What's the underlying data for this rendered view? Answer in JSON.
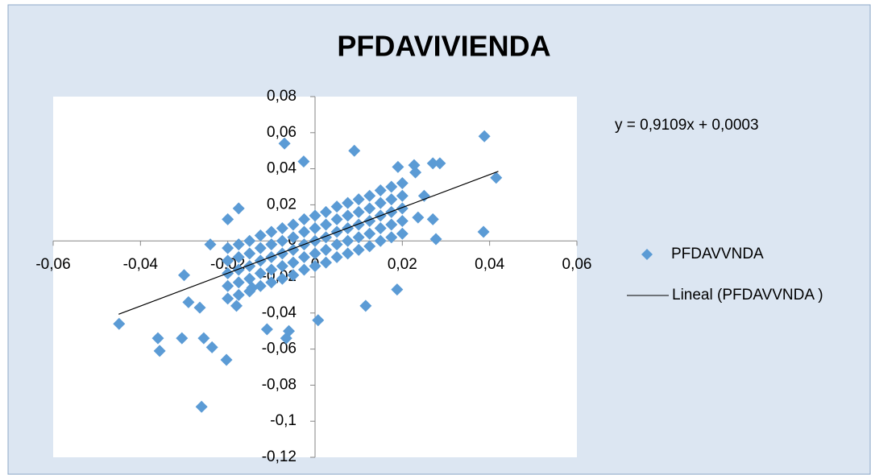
{
  "chart_data": {
    "type": "scatter",
    "title": "PFDAVIVIENDA",
    "series": [
      {
        "name": "PFDAVVNDA",
        "color": "#5b9bd5",
        "x": [
          -0.0449,
          -0.036,
          -0.0356,
          -0.0305,
          -0.03,
          -0.029,
          -0.0264,
          -0.026,
          -0.0255,
          -0.0236,
          -0.0203,
          -0.024,
          -0.018,
          -0.007,
          -0.0026,
          0.009,
          0.0007,
          0.0116,
          0.0188,
          -0.011,
          -0.0066,
          -0.006,
          0.0388,
          0.0415,
          0.0386,
          0.027,
          0.0286,
          0.0227,
          0.023,
          0.027,
          0.0277,
          0.025,
          0.0236,
          0.019,
          -0.0175,
          -0.02,
          -0.0144,
          -0.02,
          -0.02,
          -0.02,
          -0.02,
          -0.02,
          -0.0175,
          -0.0175,
          -0.0175,
          -0.0175,
          -0.0175,
          -0.015,
          -0.015,
          -0.015,
          -0.015,
          -0.015,
          -0.0125,
          -0.0125,
          -0.0125,
          -0.0125,
          -0.0125,
          -0.01,
          -0.01,
          -0.01,
          -0.01,
          -0.01,
          -0.0075,
          -0.0075,
          -0.0075,
          -0.0075,
          -0.0075,
          -0.005,
          -0.005,
          -0.005,
          -0.005,
          -0.005,
          -0.0025,
          -0.0025,
          -0.0025,
          -0.0025,
          -0.0025,
          0,
          0,
          0,
          0,
          0,
          0.0025,
          0.0025,
          0.0025,
          0.0025,
          0.0025,
          0.005,
          0.005,
          0.005,
          0.005,
          0.005,
          0.0075,
          0.0075,
          0.0075,
          0.0075,
          0.0075,
          0.01,
          0.01,
          0.01,
          0.01,
          0.01,
          0.0125,
          0.0125,
          0.0125,
          0.0125,
          0.0125,
          0.015,
          0.015,
          0.015,
          0.015,
          0.015,
          0.0175,
          0.0175,
          0.0175,
          0.0175,
          0.0175,
          0.02,
          0.02,
          0.02,
          0.02,
          0.02
        ],
        "values": [
          -0.046,
          -0.054,
          -0.061,
          -0.054,
          -0.019,
          -0.034,
          -0.037,
          -0.092,
          -0.054,
          -0.059,
          -0.066,
          -0.002,
          -0.036,
          0.054,
          0.044,
          0.05,
          -0.044,
          -0.036,
          -0.027,
          -0.049,
          -0.054,
          -0.05,
          0.058,
          0.035,
          0.005,
          0.043,
          0.043,
          0.042,
          0.038,
          0.012,
          0.001,
          0.025,
          0.013,
          0.041,
          0.018,
          0.012,
          -0.026,
          -0.032,
          -0.025,
          -0.018,
          -0.011,
          -0.004,
          -0.03,
          -0.023,
          -0.016,
          -0.009,
          -0.002,
          -0.028,
          -0.021,
          -0.014,
          -0.007,
          0,
          -0.025,
          -0.018,
          -0.011,
          -0.004,
          0.003,
          -0.023,
          -0.016,
          -0.009,
          -0.002,
          0.005,
          -0.021,
          -0.014,
          -0.007,
          0,
          0.007,
          -0.019,
          -0.012,
          -0.005,
          0.002,
          0.009,
          -0.016,
          -0.009,
          -0.002,
          0.005,
          0.012,
          -0.014,
          -0.007,
          0,
          0.007,
          0.014,
          -0.012,
          -0.005,
          0.002,
          0.009,
          0.016,
          -0.009,
          -0.002,
          0.005,
          0.012,
          0.019,
          -0.007,
          0,
          0.007,
          0.014,
          0.021,
          -0.005,
          0.002,
          0.009,
          0.016,
          0.023,
          -0.003,
          0.004,
          0.011,
          0.018,
          0.025,
          0,
          0.007,
          0.014,
          0.021,
          0.028,
          0.002,
          0.009,
          0.016,
          0.023,
          0.03,
          0.004,
          0.011,
          0.018,
          0.025,
          0.032
        ]
      }
    ],
    "trendline": {
      "name": "Lineal (PFDAVVNDA )",
      "color": "#000000",
      "slope": 0.9109,
      "intercept": 0.0003,
      "x_range": [
        -0.045,
        0.042
      ],
      "label": "y = 0,9109x + 0,0003"
    },
    "xlim": [
      -0.06,
      0.06
    ],
    "xticks": [
      {
        "value": -0.06,
        "label": "-0,06"
      },
      {
        "value": -0.04,
        "label": "-0,04"
      },
      {
        "value": -0.02,
        "label": "-0,02"
      },
      0,
      {
        "value": 0.02,
        "label": "0,02"
      },
      {
        "value": 0.04,
        "label": "0,04"
      },
      {
        "value": 0.06,
        "label": "0,06"
      }
    ],
    "ylim": [
      -0.12,
      0.08
    ],
    "yticks": [
      {
        "value": -0.12,
        "label": "-0,12"
      },
      {
        "value": -0.1,
        "label": "-0,1"
      },
      {
        "value": -0.08,
        "label": "-0,08"
      },
      {
        "value": -0.06,
        "label": "-0,06"
      },
      {
        "value": -0.04,
        "label": "-0,04"
      },
      {
        "value": -0.02,
        "label": "-0,02"
      },
      0,
      {
        "value": 0.02,
        "label": "0,02"
      },
      {
        "value": 0.04,
        "label": "0,04"
      },
      {
        "value": 0.06,
        "label": "0,06"
      },
      {
        "value": 0.08,
        "label": "0,08"
      }
    ],
    "grid": false,
    "legend": "right"
  }
}
